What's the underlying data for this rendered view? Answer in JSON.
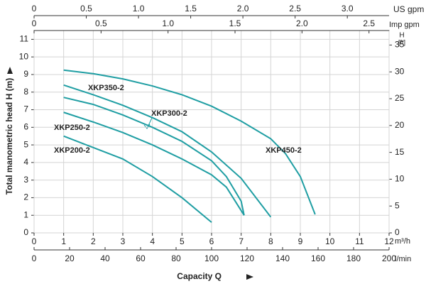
{
  "chart_data": {
    "type": "line",
    "ylabel": "Total manometric head H (m)",
    "xlabel": "Capacity Q",
    "xunit": "m³/h",
    "xlim": [
      0,
      12
    ],
    "xticks": [
      0,
      1,
      2,
      3,
      4,
      5,
      6,
      7,
      8,
      9,
      10,
      11,
      12
    ],
    "ylim": [
      0,
      11.5
    ],
    "yticks": [
      0,
      1,
      2,
      3,
      4,
      5,
      6,
      7,
      8,
      9,
      10,
      11
    ],
    "y2label": "H",
    "y2unit": "[ft]",
    "y2lim": [
      0,
      37.7
    ],
    "y2ticks": [
      0,
      5,
      10,
      15,
      20,
      25,
      30,
      35
    ],
    "x_lpm": {
      "label": "l/min",
      "lim": [
        0,
        200
      ],
      "ticks": [
        0,
        20,
        40,
        60,
        80,
        100,
        120,
        140,
        160,
        180,
        200
      ]
    },
    "x_usgpm": {
      "label": "US gpm",
      "lim": [
        0,
        3.4
      ],
      "ticks": [
        0,
        0.5,
        {
          "value": 1,
          "label": "1.0"
        },
        1.5,
        {
          "value": 2,
          "label": "2.0"
        },
        2.5,
        {
          "value": 3,
          "label": "3.0"
        }
      ]
    },
    "x_impgpm": {
      "label": "Imp gpm",
      "lim": [
        0,
        2.65
      ],
      "ticks": [
        0,
        0.5,
        {
          "value": 1,
          "label": "1.0"
        },
        1.5,
        {
          "value": 2,
          "label": "2.0"
        },
        2.5
      ]
    },
    "grid": true,
    "series": [
      {
        "name": "XKP450-2",
        "color": "#1f9ea3",
        "x": [
          1,
          2,
          3,
          4,
          5,
          6,
          7,
          8,
          8.5,
          9,
          9.5
        ],
        "values": [
          9.25,
          9.05,
          8.75,
          8.35,
          7.85,
          7.2,
          6.35,
          5.35,
          4.5,
          3.2,
          1.05
        ]
      },
      {
        "name": "XKP350-2",
        "color": "#1f9ea3",
        "x": [
          1,
          2,
          3,
          4,
          5,
          6,
          7,
          8
        ],
        "values": [
          8.4,
          7.85,
          7.25,
          6.55,
          5.75,
          4.6,
          3.1,
          0.9
        ]
      },
      {
        "name": "XKP300-2",
        "color": "#1f9ea3",
        "x": [
          1,
          2,
          3,
          4,
          5,
          6,
          6.5,
          7,
          7.1
        ],
        "values": [
          7.7,
          7.3,
          6.7,
          6.0,
          5.2,
          4.1,
          3.2,
          1.8,
          1.0
        ]
      },
      {
        "name": "XKP250-2",
        "color": "#1f9ea3",
        "x": [
          1,
          2,
          3,
          4,
          5,
          6,
          6.5,
          7.1
        ],
        "values": [
          6.85,
          6.3,
          5.7,
          5.0,
          4.2,
          3.3,
          2.6,
          1.0
        ]
      },
      {
        "name": "XKP200-2",
        "color": "#1f9ea3",
        "x": [
          1,
          2,
          3,
          4,
          5,
          6
        ],
        "values": [
          5.5,
          4.85,
          4.2,
          3.2,
          2.0,
          0.6
        ]
      }
    ]
  }
}
